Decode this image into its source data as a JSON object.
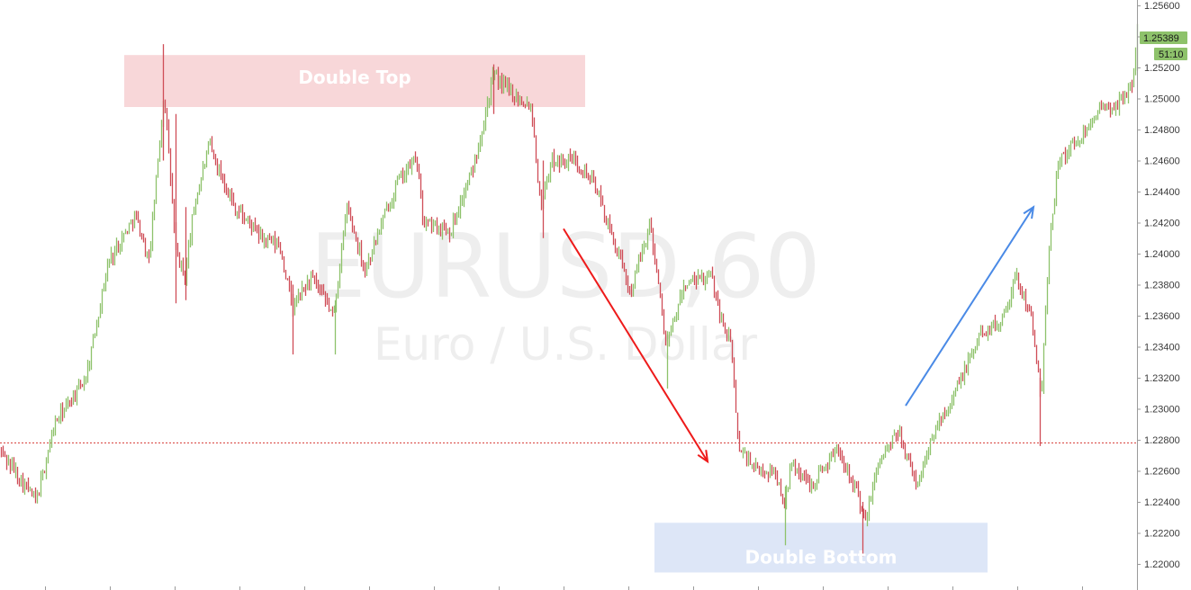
{
  "chart_data": {
    "type": "candlestick",
    "symbol": "EURUSD",
    "timeframe": "60",
    "watermark_symbol": "EURUSD,60",
    "watermark_description": "Euro / U.S. Dollar",
    "ylim": [
      1.2187,
      1.2563
    ],
    "y_ticks": [
      "1.25600",
      "1.25400",
      "1.25200",
      "1.25000",
      "1.24800",
      "1.24600",
      "1.24400",
      "1.24200",
      "1.24000",
      "1.23800",
      "1.23600",
      "1.23400",
      "1.23200",
      "1.23000",
      "1.22800",
      "1.22600",
      "1.22400",
      "1.22200",
      "1.22000"
    ],
    "current_price": "1.25389",
    "countdown": "51:10",
    "reference_line_price": 1.22785,
    "grid": false,
    "colors": {
      "bull": "#8ec26b",
      "bear": "#cf4d57",
      "badge": "#8ec26b",
      "reference_line": "#d9443f",
      "double_top_zone": "#f8d7d9",
      "double_bottom_zone": "#dde6f7",
      "down_arrow": "#ee1b1b",
      "up_arrow": "#4a8ae6"
    },
    "price_path": [
      [
        0,
        1.2273
      ],
      [
        40,
        1.224
      ],
      [
        60,
        1.229
      ],
      [
        95,
        1.232
      ],
      [
        120,
        1.2395
      ],
      [
        150,
        1.2425
      ],
      [
        165,
        1.2395
      ],
      [
        182,
        1.2505
      ],
      [
        195,
        1.24
      ],
      [
        205,
        1.2385
      ],
      [
        215,
        1.243
      ],
      [
        232,
        1.247
      ],
      [
        260,
        1.243
      ],
      [
        290,
        1.241
      ],
      [
        310,
        1.2405
      ],
      [
        325,
        1.2365
      ],
      [
        345,
        1.2385
      ],
      [
        370,
        1.236
      ],
      [
        385,
        1.243
      ],
      [
        405,
        1.239
      ],
      [
        440,
        1.2445
      ],
      [
        462,
        1.2462
      ],
      [
        470,
        1.242
      ],
      [
        500,
        1.2415
      ],
      [
        525,
        1.2455
      ],
      [
        548,
        1.2515
      ],
      [
        565,
        1.2505
      ],
      [
        590,
        1.2495
      ],
      [
        600,
        1.243
      ],
      [
        612,
        1.246
      ],
      [
        640,
        1.246
      ],
      [
        660,
        1.2445
      ],
      [
        680,
        1.241
      ],
      [
        700,
        1.2375
      ],
      [
        722,
        1.242
      ],
      [
        740,
        1.234
      ],
      [
        760,
        1.238
      ],
      [
        790,
        1.2385
      ],
      [
        800,
        1.236
      ],
      [
        812,
        1.234
      ],
      [
        820,
        1.2275
      ],
      [
        840,
        1.226
      ],
      [
        860,
        1.226
      ],
      [
        870,
        1.224
      ],
      [
        880,
        1.2265
      ],
      [
        900,
        1.225
      ],
      [
        930,
        1.2275
      ],
      [
        950,
        1.225
      ],
      [
        960,
        1.2225
      ],
      [
        975,
        1.2265
      ],
      [
        998,
        1.2285
      ],
      [
        1018,
        1.225
      ],
      [
        1040,
        1.229
      ],
      [
        1060,
        1.231
      ],
      [
        1090,
        1.235
      ],
      [
        1110,
        1.2355
      ],
      [
        1128,
        1.2385
      ],
      [
        1145,
        1.236
      ],
      [
        1156,
        1.2305
      ],
      [
        1165,
        1.2405
      ],
      [
        1175,
        1.246
      ],
      [
        1200,
        1.2475
      ],
      [
        1215,
        1.249
      ],
      [
        1240,
        1.2495
      ],
      [
        1258,
        1.251
      ],
      [
        1262,
        1.25389
      ]
    ],
    "zones": [
      {
        "label": "Double Top",
        "kind": "top",
        "price_from": 1.24945,
        "price_to": 1.2528,
        "bar_from": 138,
        "bar_to": 650
      },
      {
        "label": "Double Bottom",
        "kind": "bottom",
        "price_from": 1.21945,
        "price_to": 1.22265,
        "bar_from": 727,
        "bar_to": 1097
      }
    ],
    "arrows": [
      {
        "direction": "down",
        "from": [
          626,
          1.2416
        ],
        "to": [
          786,
          1.2266
        ]
      },
      {
        "direction": "up",
        "from": [
          1006,
          1.2302
        ],
        "to": [
          1148,
          1.243
        ]
      }
    ]
  }
}
